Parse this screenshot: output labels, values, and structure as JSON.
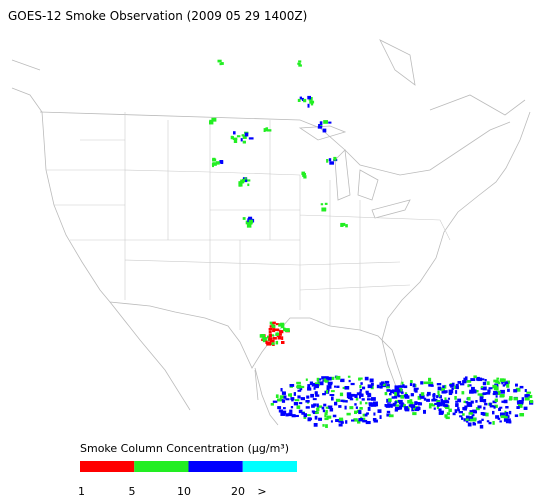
{
  "header": {
    "title": "GOES-12 Smoke Observation (2009 05 29  1400Z)"
  },
  "legend": {
    "title": "Smoke Column Concentration (μg/m³)",
    "labels": [
      "1",
      "5",
      "10",
      "20",
      ">"
    ],
    "colors": [
      "#ff0000",
      "#22ee22",
      "#0000ff",
      "#00ffff"
    ]
  }
}
